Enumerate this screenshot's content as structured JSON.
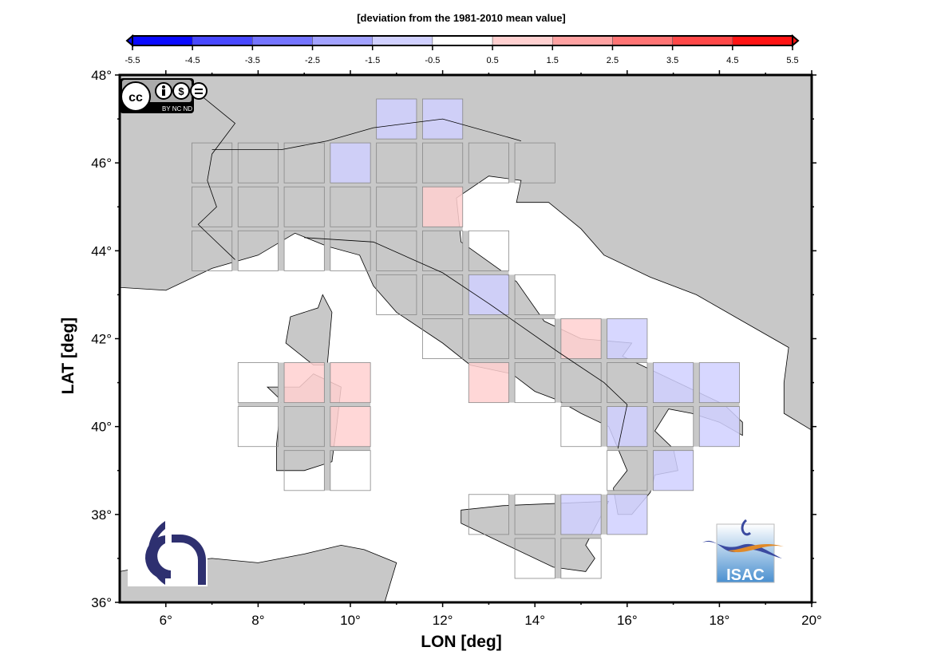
{
  "colorbar": {
    "title": "[deviation from the 1981-2010 mean value]",
    "ticks": [
      "-5.5",
      "-4.5",
      "-3.5",
      "-2.5",
      "-1.5",
      "-0.5",
      "0.5",
      "1.5",
      "2.5",
      "3.5",
      "4.5",
      "5.5"
    ],
    "bin_edges": [
      -5.5,
      -4.5,
      -3.5,
      -2.5,
      -1.5,
      -0.5,
      0.5,
      1.5,
      2.5,
      3.5,
      4.5,
      5.5
    ],
    "colors": [
      "#0a0aff",
      "#4848ff",
      "#7474ff",
      "#a2a2ff",
      "#d0d0ff",
      "#ffffff",
      "#ffd0d0",
      "#ffa2a2",
      "#ff7474",
      "#ff4848",
      "#ff1414"
    ]
  },
  "map": {
    "xlabel": "LON [deg]",
    "ylabel": "LAT [deg]",
    "lon_range": [
      5,
      20
    ],
    "lat_range": [
      36,
      48
    ],
    "x_ticks": [
      "6°",
      "8°",
      "10°",
      "12°",
      "14°",
      "16°",
      "18°",
      "20°"
    ],
    "y_ticks": [
      "36°",
      "38°",
      "40°",
      "42°",
      "44°",
      "46°",
      "48°"
    ],
    "land_color": "#c8c8c8",
    "sea_color": "#ffffff",
    "gap_color": "#c8c8c8",
    "cells": [
      {
        "lon": 11,
        "lat": 47,
        "value": -1
      },
      {
        "lon": 12,
        "lat": 47,
        "value": -1
      },
      {
        "lon": 7,
        "lat": 46,
        "value": 0
      },
      {
        "lon": 8,
        "lat": 46,
        "value": 0
      },
      {
        "lon": 9,
        "lat": 46,
        "value": 0
      },
      {
        "lon": 10,
        "lat": 46,
        "value": -1
      },
      {
        "lon": 11,
        "lat": 46,
        "value": 0
      },
      {
        "lon": 12,
        "lat": 46,
        "value": 0
      },
      {
        "lon": 13,
        "lat": 46,
        "value": 0
      },
      {
        "lon": 14,
        "lat": 46,
        "value": 0
      },
      {
        "lon": 7,
        "lat": 45,
        "value": 0
      },
      {
        "lon": 8,
        "lat": 45,
        "value": 0
      },
      {
        "lon": 9,
        "lat": 45,
        "value": 0
      },
      {
        "lon": 10,
        "lat": 45,
        "value": 0
      },
      {
        "lon": 11,
        "lat": 45,
        "value": 0
      },
      {
        "lon": 12,
        "lat": 45,
        "value": 1
      },
      {
        "lon": 7,
        "lat": 44,
        "value": 0
      },
      {
        "lon": 8,
        "lat": 44,
        "value": 0
      },
      {
        "lon": 9,
        "lat": 44,
        "value": 0
      },
      {
        "lon": 10,
        "lat": 44,
        "value": 0
      },
      {
        "lon": 11,
        "lat": 44,
        "value": 0
      },
      {
        "lon": 12,
        "lat": 44,
        "value": 0
      },
      {
        "lon": 13,
        "lat": 44,
        "value": 0
      },
      {
        "lon": 11,
        "lat": 43,
        "value": 0
      },
      {
        "lon": 12,
        "lat": 43,
        "value": 0
      },
      {
        "lon": 13,
        "lat": 43,
        "value": -1
      },
      {
        "lon": 14,
        "lat": 43,
        "value": 0
      },
      {
        "lon": 12,
        "lat": 42,
        "value": 0
      },
      {
        "lon": 13,
        "lat": 42,
        "value": 0
      },
      {
        "lon": 14,
        "lat": 42,
        "value": 0
      },
      {
        "lon": 15,
        "lat": 42,
        "value": 1
      },
      {
        "lon": 16,
        "lat": 42,
        "value": -1
      },
      {
        "lon": 8,
        "lat": 41,
        "value": 0
      },
      {
        "lon": 9,
        "lat": 41,
        "value": 1
      },
      {
        "lon": 10,
        "lat": 41,
        "value": 1
      },
      {
        "lon": 13,
        "lat": 41,
        "value": 1
      },
      {
        "lon": 14,
        "lat": 41,
        "value": 0
      },
      {
        "lon": 15,
        "lat": 41,
        "value": 0
      },
      {
        "lon": 16,
        "lat": 41,
        "value": 0
      },
      {
        "lon": 17,
        "lat": 41,
        "value": -1
      },
      {
        "lon": 18,
        "lat": 41,
        "value": -1
      },
      {
        "lon": 8,
        "lat": 40,
        "value": 0
      },
      {
        "lon": 9,
        "lat": 40,
        "value": 0
      },
      {
        "lon": 10,
        "lat": 40,
        "value": 1
      },
      {
        "lon": 15,
        "lat": 40,
        "value": 0
      },
      {
        "lon": 16,
        "lat": 40,
        "value": -1
      },
      {
        "lon": 17,
        "lat": 40,
        "value": 0
      },
      {
        "lon": 18,
        "lat": 40,
        "value": -1
      },
      {
        "lon": 9,
        "lat": 39,
        "value": 0
      },
      {
        "lon": 10,
        "lat": 39,
        "value": 0
      },
      {
        "lon": 16,
        "lat": 39,
        "value": 0
      },
      {
        "lon": 17,
        "lat": 39,
        "value": -1
      },
      {
        "lon": 13,
        "lat": 38,
        "value": 0
      },
      {
        "lon": 14,
        "lat": 38,
        "value": 0
      },
      {
        "lon": 15,
        "lat": 38,
        "value": -1
      },
      {
        "lon": 16,
        "lat": 38,
        "value": -1
      },
      {
        "lon": 14,
        "lat": 37,
        "value": 0
      },
      {
        "lon": 15,
        "lat": 37,
        "value": 0
      }
    ]
  },
  "logos": {
    "license": "cc BY NC ND",
    "institute": "ISAC",
    "cnr_color": "#2e3070",
    "isac_blue": "#3b4aa0",
    "isac_orange": "#e08a2a"
  }
}
